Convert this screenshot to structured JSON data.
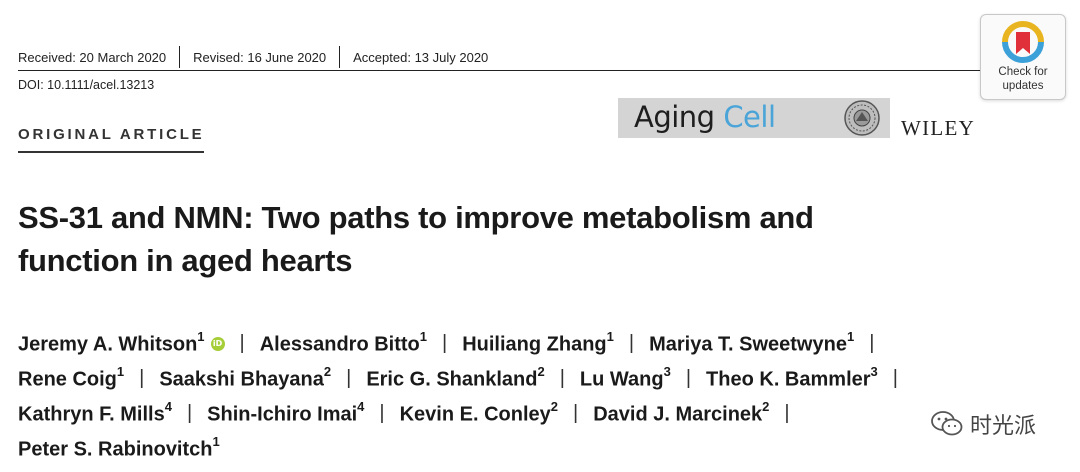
{
  "header": {
    "received": "Received: 20 March 2020",
    "revised": "Revised: 16 June 2020",
    "accepted": "Accepted: 13 July 2020",
    "doi": "DOI: 10.1111/acel.13213"
  },
  "check_updates": {
    "line1": "Check for",
    "line2": "updates"
  },
  "journal": {
    "name_part1": "Aging ",
    "name_part2": "Cell",
    "publisher": "WILEY"
  },
  "article_type": "ORIGINAL ARTICLE",
  "title": {
    "line1": "SS-31 and NMN: Two paths to improve metabolism and",
    "line2": "function in aged hearts"
  },
  "authors": [
    [
      {
        "name": "Jeremy A. Whitson",
        "aff": "1"
      },
      {
        "name": "Alessandro Bitto",
        "aff": "1"
      },
      {
        "name": "Huiliang Zhang",
        "aff": "1"
      },
      {
        "name": "Mariya T. Sweetwyne",
        "aff": "1"
      }
    ],
    [
      {
        "name": "Rene Coig",
        "aff": "1"
      },
      {
        "name": "Saakshi Bhayana",
        "aff": "2"
      },
      {
        "name": "Eric G. Shankland",
        "aff": "2"
      },
      {
        "name": "Lu Wang",
        "aff": "3"
      },
      {
        "name": "Theo K. Bammler",
        "aff": "3"
      }
    ],
    [
      {
        "name": "Kathryn F. Mills",
        "aff": "4"
      },
      {
        "name": "Shin-Ichiro Imai",
        "aff": "4"
      },
      {
        "name": "Kevin E. Conley",
        "aff": "2"
      },
      {
        "name": "David J. Marcinek",
        "aff": "2"
      }
    ],
    [
      {
        "name": "Peter S. Rabinovitch",
        "aff": "1"
      }
    ]
  ],
  "orcid_badge": "iD",
  "watermark": {
    "text": "时光派"
  },
  "colors": {
    "aging_cell_blue": "#4aa4d8",
    "orcid_green": "#a6ce39",
    "logo_bar": "#d4d4d4"
  }
}
